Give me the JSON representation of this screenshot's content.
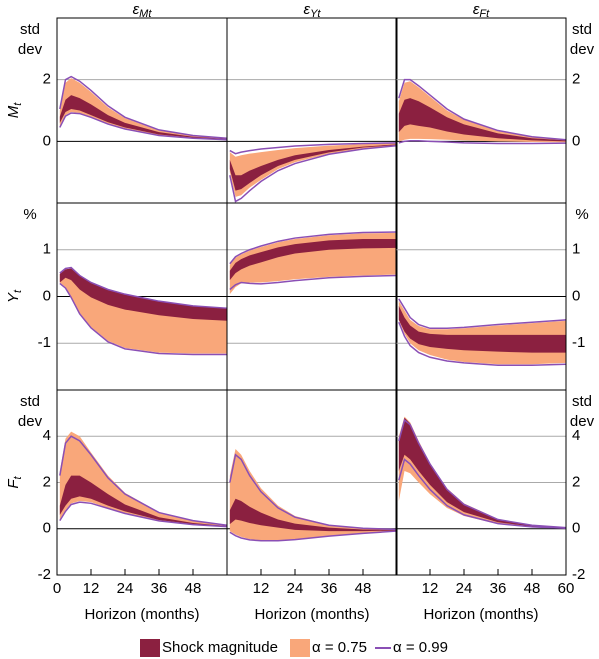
{
  "chart_data": [
    {
      "type": "band",
      "title": {
        "main": "ε",
        "sub": "Mt"
      },
      "ylabel": {
        "main": "M",
        "sub": "t"
      },
      "unit": [
        "std",
        "dev"
      ],
      "x": [
        1,
        3,
        5,
        8,
        12,
        18,
        24,
        36,
        48,
        60
      ],
      "xlim": [
        0,
        60
      ],
      "ylim": [
        -2,
        4
      ],
      "yticks": [
        0,
        2
      ],
      "grid": true,
      "bands": [
        {
          "color": "#f9a77a",
          "lower": [
            0.5,
            0.85,
            0.95,
            0.92,
            0.8,
            0.58,
            0.42,
            0.2,
            0.1,
            0.05
          ],
          "upper": [
            1.0,
            1.9,
            2.05,
            1.9,
            1.6,
            1.1,
            0.75,
            0.35,
            0.18,
            0.1
          ]
        },
        {
          "color": "#8b2040",
          "lower": [
            0.6,
            0.95,
            1.05,
            1.0,
            0.85,
            0.62,
            0.45,
            0.22,
            0.12,
            0.06
          ],
          "upper": [
            0.8,
            1.35,
            1.5,
            1.4,
            1.2,
            0.85,
            0.6,
            0.3,
            0.15,
            0.08
          ]
        },
        {
          "color": "#8a4fb5",
          "lower": [
            0.45,
            0.82,
            0.92,
            0.9,
            0.78,
            0.56,
            0.4,
            0.19,
            0.1,
            0.05
          ],
          "upper": [
            1.05,
            2.0,
            2.1,
            1.95,
            1.65,
            1.15,
            0.78,
            0.37,
            0.19,
            0.1
          ]
        }
      ]
    },
    {
      "type": "band",
      "title": {
        "main": "ε",
        "sub": "Yt"
      },
      "x": [
        1,
        3,
        5,
        8,
        12,
        18,
        24,
        36,
        48,
        60
      ],
      "xlim": [
        0,
        60
      ],
      "ylim": [
        -2,
        4
      ],
      "yticks": [
        0,
        2
      ],
      "grid": true,
      "bands": [
        {
          "color": "#f9a77a",
          "lower": [
            -1.0,
            -1.8,
            -1.75,
            -1.5,
            -1.25,
            -0.9,
            -0.68,
            -0.4,
            -0.23,
            -0.13
          ],
          "upper": [
            -0.35,
            -0.5,
            -0.45,
            -0.4,
            -0.35,
            -0.28,
            -0.22,
            -0.14,
            -0.09,
            -0.06
          ]
        },
        {
          "color": "#8b2040",
          "lower": [
            -0.9,
            -1.6,
            -1.55,
            -1.35,
            -1.1,
            -0.8,
            -0.6,
            -0.36,
            -0.2,
            -0.12
          ],
          "upper": [
            -0.6,
            -1.1,
            -1.1,
            -0.95,
            -0.8,
            -0.6,
            -0.45,
            -0.28,
            -0.17,
            -0.1
          ]
        },
        {
          "color": "#8a4fb5",
          "lower": [
            -1.1,
            -1.95,
            -1.85,
            -1.6,
            -1.3,
            -0.95,
            -0.72,
            -0.42,
            -0.25,
            -0.14
          ],
          "upper": [
            -0.3,
            -0.4,
            -0.35,
            -0.3,
            -0.25,
            -0.2,
            -0.15,
            -0.1,
            -0.07,
            -0.05
          ]
        }
      ]
    },
    {
      "type": "band",
      "title": {
        "main": "ε",
        "sub": "Ft"
      },
      "x": [
        1,
        3,
        5,
        8,
        12,
        18,
        24,
        36,
        48,
        60
      ],
      "xlim": [
        0,
        60
      ],
      "ylim": [
        -2,
        4
      ],
      "yticks": [
        0,
        2
      ],
      "grid": true,
      "bands": [
        {
          "color": "#f9a77a",
          "lower": [
            0.0,
            0.05,
            0.08,
            0.08,
            0.07,
            0.05,
            0.03,
            0.0,
            -0.02,
            -0.03
          ],
          "upper": [
            1.3,
            1.9,
            1.95,
            1.75,
            1.45,
            1.0,
            0.7,
            0.33,
            0.14,
            0.04
          ]
        },
        {
          "color": "#8b2040",
          "lower": [
            0.3,
            0.5,
            0.55,
            0.5,
            0.45,
            0.32,
            0.22,
            0.1,
            0.03,
            0.0
          ],
          "upper": [
            0.9,
            1.35,
            1.4,
            1.3,
            1.1,
            0.78,
            0.55,
            0.26,
            0.1,
            0.03
          ]
        },
        {
          "color": "#8a4fb5",
          "lower": [
            -0.05,
            0.0,
            0.02,
            0.02,
            0.0,
            -0.02,
            -0.05,
            -0.07,
            -0.07,
            -0.06
          ],
          "upper": [
            1.4,
            2.0,
            2.0,
            1.8,
            1.5,
            1.05,
            0.72,
            0.35,
            0.15,
            0.05
          ]
        }
      ]
    },
    {
      "type": "band",
      "ylabel": {
        "main": "Y",
        "sub": "t"
      },
      "unit": [
        "%"
      ],
      "x": [
        1,
        3,
        5,
        8,
        12,
        18,
        24,
        36,
        48,
        60
      ],
      "xlim": [
        0,
        60
      ],
      "ylim": [
        -2,
        2
      ],
      "yticks": [
        -1,
        0,
        1
      ],
      "grid": true,
      "bands": [
        {
          "color": "#f9a77a",
          "lower": [
            0.3,
            0.2,
            0.0,
            -0.35,
            -0.65,
            -0.95,
            -1.1,
            -1.2,
            -1.22,
            -1.22
          ],
          "upper": [
            0.48,
            0.58,
            0.6,
            0.44,
            0.29,
            0.14,
            0.04,
            -0.1,
            -0.2,
            -0.25
          ]
        },
        {
          "color": "#8b2040",
          "lower": [
            0.3,
            0.4,
            0.35,
            0.15,
            -0.02,
            -0.18,
            -0.28,
            -0.4,
            -0.48,
            -0.52
          ],
          "upper": [
            0.48,
            0.58,
            0.6,
            0.44,
            0.29,
            0.14,
            0.04,
            -0.1,
            -0.2,
            -0.25
          ]
        },
        {
          "color": "#8a4fb5",
          "lower": [
            0.28,
            0.18,
            -0.02,
            -0.37,
            -0.67,
            -0.97,
            -1.12,
            -1.22,
            -1.24,
            -1.24
          ],
          "upper": [
            0.5,
            0.6,
            0.62,
            0.45,
            0.3,
            0.15,
            0.05,
            -0.1,
            -0.2,
            -0.25
          ]
        }
      ]
    },
    {
      "type": "band",
      "x": [
        1,
        3,
        5,
        8,
        12,
        18,
        24,
        36,
        48,
        60
      ],
      "xlim": [
        0,
        60
      ],
      "ylim": [
        -2,
        2
      ],
      "yticks": [
        -1,
        0,
        1
      ],
      "grid": true,
      "bands": [
        {
          "color": "#f9a77a",
          "lower": [
            0.05,
            0.2,
            0.28,
            0.3,
            0.3,
            0.33,
            0.37,
            0.42,
            0.45,
            0.47
          ],
          "upper": [
            0.68,
            0.83,
            0.9,
            0.98,
            1.06,
            1.16,
            1.23,
            1.31,
            1.35,
            1.36
          ]
        },
        {
          "color": "#8b2040",
          "lower": [
            0.35,
            0.5,
            0.58,
            0.66,
            0.73,
            0.84,
            0.92,
            1.0,
            1.03,
            1.04
          ],
          "upper": [
            0.55,
            0.72,
            0.8,
            0.88,
            0.95,
            1.05,
            1.12,
            1.2,
            1.23,
            1.23
          ]
        },
        {
          "color": "#8a4fb5",
          "lower": [
            0.15,
            0.25,
            0.3,
            0.28,
            0.27,
            0.3,
            0.34,
            0.4,
            0.43,
            0.45
          ],
          "upper": [
            0.7,
            0.85,
            0.92,
            1.0,
            1.08,
            1.18,
            1.25,
            1.33,
            1.37,
            1.38
          ]
        }
      ]
    },
    {
      "type": "band",
      "x": [
        1,
        3,
        5,
        8,
        12,
        18,
        24,
        36,
        48,
        60
      ],
      "xlim": [
        0,
        60
      ],
      "ylim": [
        -2,
        2
      ],
      "yticks": [
        -1,
        0,
        1
      ],
      "grid": true,
      "bands": [
        {
          "color": "#f9a77a",
          "lower": [
            -0.5,
            -0.8,
            -1.0,
            -1.15,
            -1.25,
            -1.35,
            -1.4,
            -1.45,
            -1.45,
            -1.42
          ],
          "upper": [
            -0.1,
            -0.3,
            -0.5,
            -0.63,
            -0.7,
            -0.7,
            -0.68,
            -0.62,
            -0.57,
            -0.52
          ]
        },
        {
          "color": "#8b2040",
          "lower": [
            -0.5,
            -0.75,
            -0.9,
            -1.02,
            -1.08,
            -1.12,
            -1.15,
            -1.18,
            -1.2,
            -1.2
          ],
          "upper": [
            -0.2,
            -0.45,
            -0.62,
            -0.75,
            -0.8,
            -0.82,
            -0.82,
            -0.82,
            -0.82,
            -0.82
          ]
        },
        {
          "color": "#8a4fb5",
          "lower": [
            -0.55,
            -0.85,
            -1.05,
            -1.2,
            -1.3,
            -1.38,
            -1.42,
            -1.47,
            -1.47,
            -1.45
          ],
          "upper": [
            -0.05,
            -0.25,
            -0.45,
            -0.6,
            -0.68,
            -0.68,
            -0.66,
            -0.6,
            -0.55,
            -0.5
          ]
        }
      ]
    },
    {
      "type": "band",
      "ylabel": {
        "main": "F",
        "sub": "t"
      },
      "unit": [
        "std",
        "dev"
      ],
      "xlabel": "Horizon (months)",
      "xticks": [
        0,
        12,
        24,
        36,
        48
      ],
      "x": [
        1,
        3,
        5,
        8,
        12,
        18,
        24,
        36,
        48,
        60
      ],
      "xlim": [
        0,
        60
      ],
      "ylim": [
        -2,
        6
      ],
      "yticks": [
        -2,
        0,
        2,
        4
      ],
      "grid": true,
      "bands": [
        {
          "color": "#f9a77a",
          "lower": [
            0.4,
            0.8,
            1.1,
            1.2,
            1.15,
            0.9,
            0.68,
            0.35,
            0.18,
            0.09
          ],
          "upper": [
            2.5,
            3.9,
            4.2,
            4.0,
            3.3,
            2.3,
            1.55,
            0.72,
            0.36,
            0.16
          ]
        },
        {
          "color": "#8b2040",
          "lower": [
            0.6,
            1.0,
            1.3,
            1.4,
            1.3,
            1.0,
            0.75,
            0.38,
            0.2,
            0.1
          ],
          "upper": [
            1.0,
            1.9,
            2.3,
            2.3,
            2.0,
            1.5,
            1.05,
            0.5,
            0.25,
            0.12
          ]
        },
        {
          "color": "#8a4fb5",
          "lower": [
            0.35,
            0.75,
            1.05,
            1.15,
            1.1,
            0.88,
            0.66,
            0.34,
            0.18,
            0.09
          ],
          "upper": [
            2.3,
            3.7,
            4.0,
            3.8,
            3.2,
            2.2,
            1.5,
            0.7,
            0.35,
            0.15
          ]
        }
      ]
    },
    {
      "type": "band",
      "xlabel": "Horizon (months)",
      "xticks": [
        12,
        24,
        36,
        48
      ],
      "x": [
        1,
        3,
        5,
        8,
        12,
        18,
        24,
        36,
        48,
        60
      ],
      "xlim": [
        0,
        60
      ],
      "ylim": [
        -2,
        6
      ],
      "yticks": [
        -2,
        0,
        2,
        4
      ],
      "grid": true,
      "bands": [
        {
          "color": "#f9a77a",
          "lower": [
            -0.1,
            -0.25,
            -0.35,
            -0.45,
            -0.5,
            -0.5,
            -0.45,
            -0.3,
            -0.18,
            -0.1
          ],
          "upper": [
            2.3,
            3.45,
            3.2,
            2.5,
            1.75,
            1.0,
            0.55,
            0.17,
            0.03,
            -0.03
          ]
        },
        {
          "color": "#8b2040",
          "lower": [
            0.2,
            0.4,
            0.35,
            0.25,
            0.15,
            0.05,
            -0.05,
            -0.1,
            -0.1,
            -0.08
          ],
          "upper": [
            0.8,
            1.3,
            1.2,
            0.95,
            0.7,
            0.4,
            0.22,
            0.05,
            -0.03,
            -0.05
          ]
        },
        {
          "color": "#8a4fb5",
          "lower": [
            -0.15,
            -0.3,
            -0.4,
            -0.48,
            -0.52,
            -0.52,
            -0.47,
            -0.32,
            -0.2,
            -0.1
          ],
          "upper": [
            2.0,
            3.2,
            3.0,
            2.3,
            1.6,
            0.9,
            0.5,
            0.15,
            0.02,
            -0.03
          ]
        }
      ]
    },
    {
      "type": "band",
      "xlabel": "Horizon (months)",
      "xticks": [
        12,
        24,
        36,
        48,
        60
      ],
      "x": [
        1,
        3,
        5,
        8,
        12,
        18,
        24,
        36,
        48,
        60
      ],
      "xlim": [
        0,
        60
      ],
      "ylim": [
        -2,
        6
      ],
      "yticks": [
        -2,
        0,
        2,
        4
      ],
      "grid": true,
      "bands": [
        {
          "color": "#f9a77a",
          "lower": [
            1.2,
            2.5,
            2.4,
            2.0,
            1.5,
            0.9,
            0.55,
            0.2,
            0.07,
            0.02
          ],
          "upper": [
            4.0,
            4.85,
            4.6,
            3.8,
            2.85,
            1.75,
            1.1,
            0.42,
            0.16,
            0.06
          ]
        },
        {
          "color": "#8b2040",
          "lower": [
            2.5,
            3.2,
            3.0,
            2.5,
            1.9,
            1.15,
            0.72,
            0.28,
            0.1,
            0.03
          ],
          "upper": [
            3.9,
            4.8,
            4.55,
            3.75,
            2.8,
            1.7,
            1.05,
            0.4,
            0.15,
            0.05
          ]
        },
        {
          "color": "#8a4fb5",
          "lower": [
            2.1,
            3.0,
            2.8,
            2.3,
            1.7,
            1.0,
            0.6,
            0.22,
            0.08,
            0.02
          ],
          "upper": [
            3.8,
            4.7,
            4.5,
            3.7,
            2.8,
            1.7,
            1.05,
            0.4,
            0.15,
            0.05
          ]
        }
      ]
    }
  ],
  "legend": [
    {
      "label": "Shock magnitude",
      "color": "#8b2040"
    },
    {
      "label": "α = 0.75",
      "color": "#f9a77a"
    },
    {
      "label": "α = 0.99",
      "color": "#8a4fb5"
    }
  ]
}
